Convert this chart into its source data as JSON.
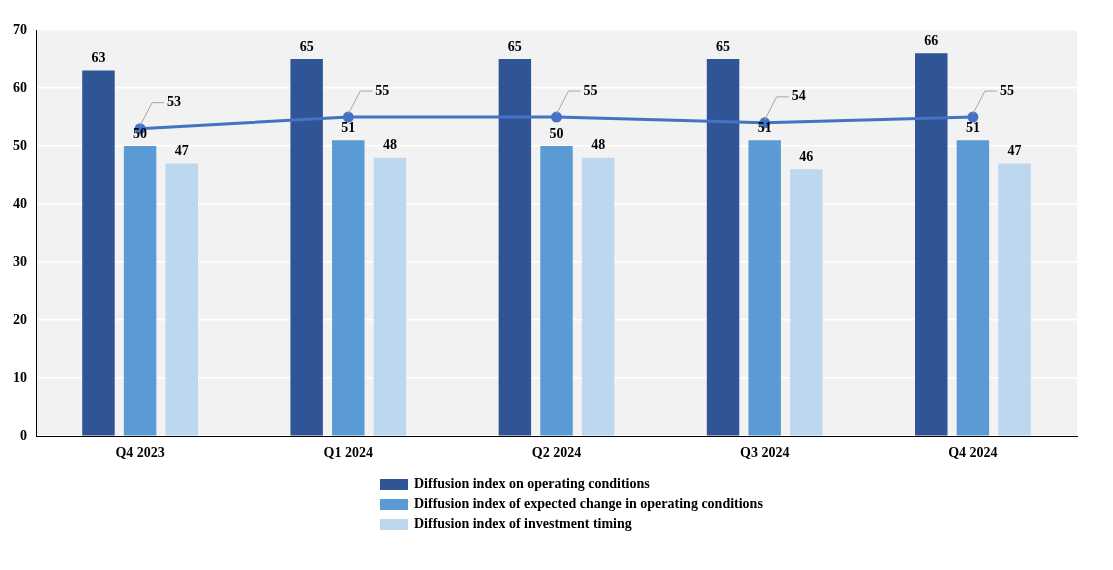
{
  "chart_data": {
    "type": "bar",
    "categories": [
      "Q4 2023",
      "Q1 2024",
      "Q2 2024",
      "Q3 2024",
      "Q4 2024"
    ],
    "series": [
      {
        "name": "Diffusion index on operating conditions",
        "color": "#2f5597",
        "values": [
          63,
          65,
          65,
          65,
          66
        ]
      },
      {
        "name": "Diffusion index of expected change in operating conditions",
        "color": "#5b9bd5",
        "values": [
          50,
          51,
          50,
          51,
          51
        ]
      },
      {
        "name": "Diffusion index of investment timing",
        "color": "#bdd7ee",
        "values": [
          47,
          48,
          48,
          46,
          47
        ]
      },
      {
        "type": "line",
        "color": "#4472c4",
        "values": [
          53,
          55,
          55,
          54,
          55
        ],
        "marker": "circle"
      }
    ],
    "ylim": [
      0,
      70
    ],
    "yticks": [
      0,
      10,
      20,
      30,
      40,
      50,
      60,
      70
    ],
    "grid": "y",
    "legend": "bottom",
    "data_labels": true
  }
}
